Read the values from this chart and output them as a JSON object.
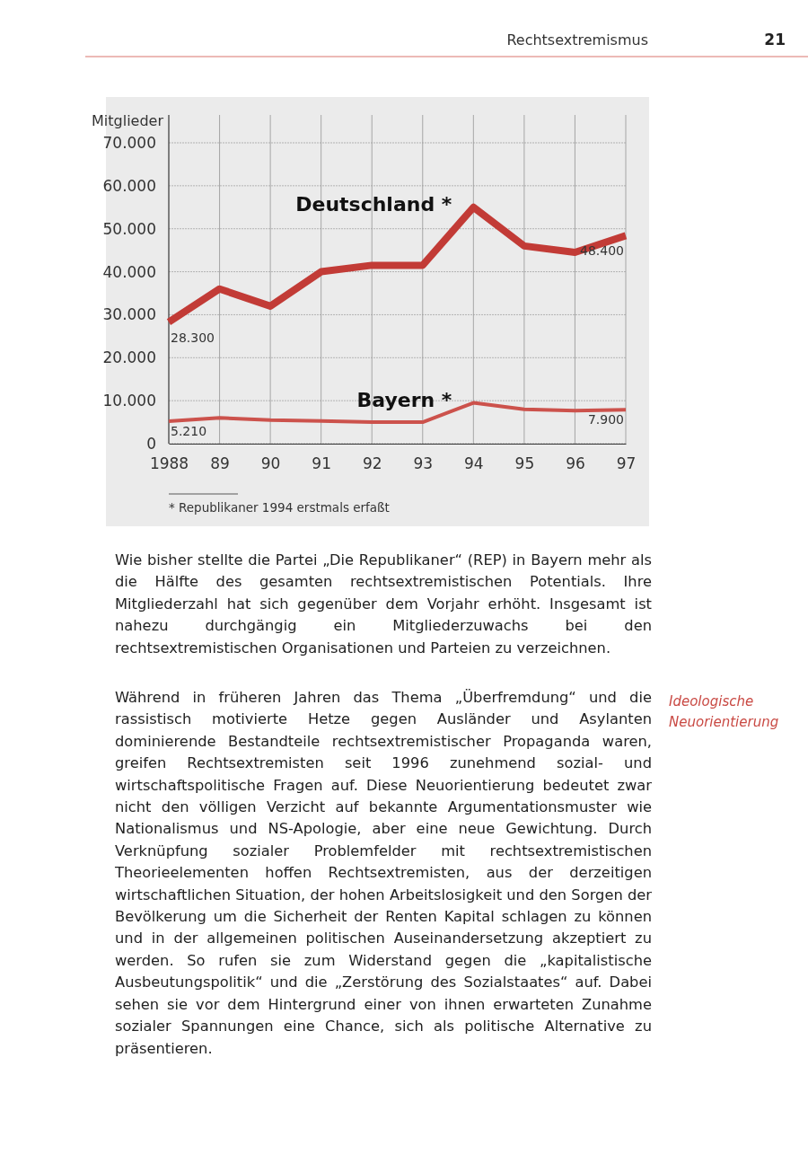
{
  "chart_data": {
    "type": "line",
    "title": "Rechtsextremismus",
    "ylabel": "Mitglieder",
    "categories": [
      "1988",
      "89",
      "90",
      "91",
      "92",
      "93",
      "94",
      "95",
      "96",
      "97"
    ],
    "series": [
      {
        "name": "Deutschland *",
        "color": "#c23b36",
        "values": [
          28300,
          36000,
          32000,
          40000,
          41500,
          41500,
          55000,
          46000,
          44500,
          48400
        ],
        "value_labels": [
          "28.300",
          null,
          null,
          null,
          null,
          null,
          null,
          null,
          null,
          "48.400"
        ]
      },
      {
        "name": "Bayern *",
        "color": "#cc524c",
        "values": [
          5210,
          6000,
          5500,
          5300,
          5000,
          5000,
          9500,
          8000,
          7700,
          7900
        ],
        "value_labels": [
          "5.210",
          null,
          null,
          null,
          null,
          null,
          null,
          null,
          null,
          "7.900"
        ]
      }
    ],
    "ylim": [
      0,
      70000
    ],
    "yticks": [
      {
        "value": 0,
        "label": "0"
      },
      {
        "value": 10000,
        "label": "10.000"
      },
      {
        "value": 20000,
        "label": "20.000"
      },
      {
        "value": 30000,
        "label": "30.000"
      },
      {
        "value": 40000,
        "label": "40.000"
      },
      {
        "value": 50000,
        "label": "50.000"
      },
      {
        "value": 60000,
        "label": "60.000"
      },
      {
        "value": 70000,
        "label": "70.000"
      }
    ],
    "grid": true,
    "marker": "none",
    "line_style": "solid",
    "annotations": [
      "* Republikaner 1994 erstmals erfaßt",
      "21",
      "Wie bisher stellte die Partei „Die Republikaner“ (REP) in Bayern mehr als die Hälfte des gesamten rechtsextremistischen Potentials. Ihre Mitgliederzahl hat sich gegenüber dem Vorjahr erhöht. Insgesamt ist nahezu durchgängig ein Mitgliederzuwachs bei den rechtsextremistischen Organisationen und Parteien zu verzeichnen.",
      "Während in früheren Jahren das Thema „Überfremdung“ und die rassistisch motivierte Hetze gegen Ausländer und Asylanten dominierende Bestandteile rechtsextremistischer Propaganda waren, greifen Rechtsextremisten seit 1996 zunehmend sozial- und wirtschaftspolitische Fragen auf. Diese Neuorientierung bedeutet zwar nicht den völligen Verzicht auf bekannte Argumentationsmuster wie Nationalismus und NS-Apologie, aber eine neue Gewichtung. Durch Verknüpfung sozialer Problemfelder mit rechtsextremistischen Theorieelementen hoffen Rechtsextremisten, aus der derzeitigen wirtschaftlichen Situation, der hohen Arbeitslosigkeit und den Sorgen der Bevölkerung um die Sicherheit der Renten Kapital schlagen zu können und in der allgemeinen politischen Auseinandersetzung akzeptiert zu werden. So rufen sie zum Widerstand gegen die „kapitalistische Ausbeutungspolitik“ und die „Zerstörung des Sozialstaates“ auf. Dabei sehen sie vor dem Hintergrund einer von ihnen erwarteten Zunahme sozialer Spannungen eine Chance, sich als politische Alternative zu präsentieren.",
      "Ideologische Neuorientierung"
    ]
  }
}
